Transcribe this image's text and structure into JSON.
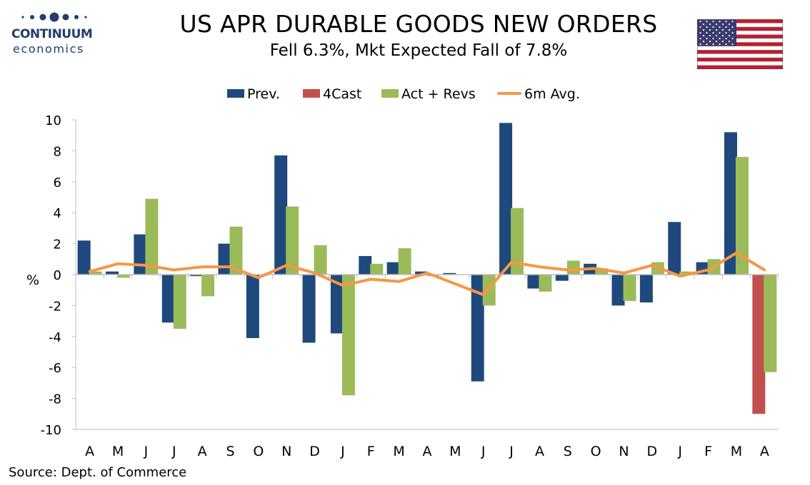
{
  "logo": {
    "line1": "CONTINUUM",
    "line2": "economics"
  },
  "header": {
    "title": "US APR DURABLE GOODS NEW ORDERS",
    "subtitle": "Fell 6.3%, Mkt Expected Fall of 7.8%"
  },
  "footer": {
    "source": "Source: Dept. of Commerce"
  },
  "colors": {
    "prev": "#1f497d",
    "forecast": "#c0504d",
    "actual": "#9bbb59",
    "avg": "#f79646",
    "brand": "#1f3e6b"
  },
  "chart_data": {
    "type": "bar",
    "categories": [
      "A",
      "M",
      "J",
      "J",
      "A",
      "S",
      "O",
      "N",
      "D",
      "J",
      "F",
      "M",
      "A",
      "M",
      "J",
      "J",
      "A",
      "S",
      "O",
      "N",
      "D",
      "J",
      "F",
      "M",
      "A"
    ],
    "ylabel": "%",
    "ylim": [
      -10,
      10
    ],
    "yticks": [
      10,
      8,
      6,
      4,
      2,
      0,
      -2,
      -4,
      -6,
      -8,
      -10
    ],
    "grid": false,
    "legend_position": "top",
    "series": [
      {
        "name": "Prev.",
        "kind": "bar",
        "values": [
          2.2,
          0.2,
          2.6,
          -3.1,
          -0.1,
          2.0,
          -4.1,
          7.7,
          -4.4,
          -3.8,
          1.2,
          0.8,
          0.2,
          0.1,
          -6.9,
          9.8,
          -0.9,
          -0.4,
          0.7,
          -2.0,
          -1.8,
          3.4,
          0.8,
          9.2,
          null
        ]
      },
      {
        "name": "4Cast",
        "kind": "bar",
        "values": [
          null,
          null,
          null,
          null,
          null,
          null,
          null,
          null,
          null,
          null,
          null,
          null,
          null,
          null,
          null,
          null,
          null,
          null,
          null,
          null,
          null,
          null,
          null,
          null,
          -9.0
        ]
      },
      {
        "name": "Act + Revs",
        "kind": "bar",
        "values": [
          0.2,
          -0.2,
          4.9,
          -3.5,
          -1.4,
          3.1,
          0.0,
          4.4,
          1.9,
          -7.8,
          0.7,
          1.7,
          -0.1,
          0.0,
          -2.0,
          4.3,
          -1.1,
          0.9,
          0.4,
          -1.7,
          0.8,
          0.2,
          1.0,
          7.6,
          -6.3
        ]
      },
      {
        "name": "6m Avg.",
        "kind": "line",
        "values": [
          0.2,
          0.7,
          0.6,
          0.3,
          0.5,
          0.5,
          -0.2,
          0.6,
          0.1,
          -0.7,
          -0.3,
          -0.45,
          0.1,
          -0.6,
          -1.3,
          0.8,
          0.5,
          0.3,
          0.4,
          0.1,
          0.6,
          -0.1,
          0.3,
          1.4,
          0.3
        ]
      }
    ]
  }
}
